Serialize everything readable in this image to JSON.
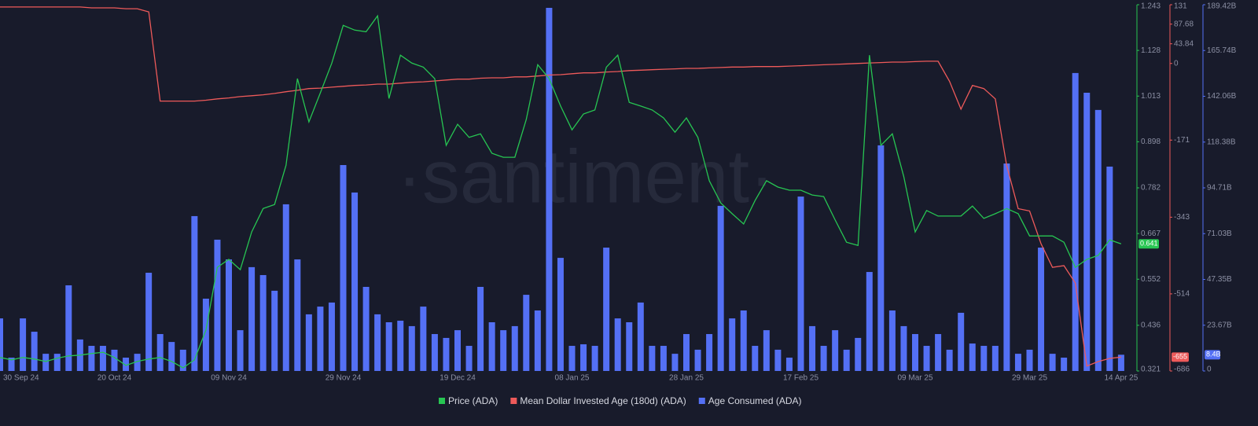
{
  "chart_data": {
    "type": "combo",
    "watermark": "·santiment·",
    "categories": [
      "30 Sep 24",
      null,
      null,
      null,
      null,
      null,
      null,
      null,
      null,
      null,
      "20 Oct 24",
      null,
      null,
      null,
      null,
      null,
      null,
      null,
      null,
      null,
      "09 Nov 24",
      null,
      null,
      null,
      null,
      null,
      null,
      null,
      null,
      null,
      "29 Nov 24",
      null,
      null,
      null,
      null,
      null,
      null,
      null,
      null,
      null,
      "19 Dec 24",
      null,
      null,
      null,
      null,
      null,
      null,
      null,
      null,
      null,
      "08 Jan 25",
      null,
      null,
      null,
      null,
      null,
      null,
      null,
      null,
      null,
      "28 Jan 25",
      null,
      null,
      null,
      null,
      null,
      null,
      null,
      null,
      null,
      "17 Feb 25",
      null,
      null,
      null,
      null,
      null,
      null,
      null,
      null,
      null,
      "09 Mar 25",
      null,
      null,
      null,
      null,
      null,
      null,
      null,
      null,
      null,
      "29 Mar 25",
      null,
      null,
      null,
      null,
      null,
      null,
      null,
      "14 Apr 25"
    ],
    "series": [
      {
        "name": "Price (ADA)",
        "type": "line",
        "axis": "y",
        "color": "#27c552",
        "values": [
          0.355,
          0.349,
          0.355,
          0.351,
          0.345,
          0.353,
          0.359,
          0.361,
          0.365,
          0.368,
          0.355,
          0.335,
          0.345,
          0.351,
          0.355,
          0.345,
          0.329,
          0.349,
          0.424,
          0.582,
          0.602,
          0.576,
          0.671,
          0.73,
          0.74,
          0.839,
          1.057,
          0.948,
          1.021,
          1.096,
          1.191,
          1.179,
          1.175,
          1.215,
          1.007,
          1.116,
          1.096,
          1.086,
          1.057,
          0.889,
          0.942,
          0.909,
          0.918,
          0.869,
          0.859,
          0.859,
          0.954,
          1.092,
          1.057,
          0.988,
          0.928,
          0.968,
          0.978,
          1.086,
          1.116,
          0.997,
          0.988,
          0.978,
          0.958,
          0.922,
          0.958,
          0.909,
          0.8,
          0.744,
          0.717,
          0.691,
          0.75,
          0.8,
          0.784,
          0.776,
          0.776,
          0.764,
          0.76,
          0.701,
          0.645,
          0.637,
          1.116,
          0.889,
          0.918,
          0.81,
          0.671,
          0.725,
          0.711,
          0.711,
          0.711,
          0.736,
          0.705,
          0.717,
          0.73,
          0.717,
          0.661,
          0.661,
          0.661,
          0.645,
          0.582,
          0.602,
          0.612,
          0.651,
          0.641
        ]
      },
      {
        "name": "Mean Dollar Invested Age (180d) (ADA)",
        "type": "line",
        "axis": "y2",
        "color": "#ee5a5a",
        "values": [
          126,
          126,
          126,
          126,
          126,
          126,
          126,
          126,
          124,
          124,
          124,
          122,
          122,
          115,
          -84,
          -84,
          -84,
          -84,
          -82,
          -79,
          -77,
          -74,
          -72,
          -70,
          -67,
          -63,
          -60,
          -56,
          -55,
          -53,
          -51,
          -49,
          -48,
          -46,
          -46,
          -44,
          -42,
          -41,
          -39,
          -37,
          -35,
          -35,
          -33,
          -32,
          -32,
          -30,
          -30,
          -28,
          -26,
          -25,
          -23,
          -21,
          -21,
          -19,
          -18,
          -16,
          -15,
          -14,
          -13,
          -12,
          -11,
          -11,
          -10,
          -9,
          -8,
          -8,
          -7,
          -7,
          -7,
          -6,
          -5,
          -4,
          -3,
          -2,
          -1,
          0,
          1,
          2,
          3,
          3,
          4,
          5,
          5,
          -40,
          -102,
          -49,
          -56,
          -79,
          -228,
          -324,
          -329,
          -402,
          -455,
          -451,
          -490,
          -675,
          -665,
          -658,
          -655
        ]
      },
      {
        "name": "Age Consumed (ADA)",
        "type": "bar",
        "axis": "y3",
        "color": "#5470f5",
        "last_value_label": "8.4B",
        "values": [
          27.2,
          6.9,
          27.2,
          20.3,
          8.9,
          8.9,
          44.3,
          16.3,
          13.0,
          13.0,
          11.0,
          6.9,
          8.9,
          50.8,
          19.1,
          15.0,
          11.0,
          80.1,
          37.4,
          67.9,
          57.7,
          21.1,
          53.7,
          49.6,
          41.5,
          86.2,
          57.7,
          29.3,
          33.3,
          35.4,
          106.5,
          92.3,
          43.5,
          29.3,
          25.2,
          26.0,
          23.2,
          33.3,
          19.1,
          17.1,
          21.1,
          13.0,
          43.5,
          25.2,
          21.1,
          23.2,
          39.4,
          31.3,
          187.8,
          58.5,
          13.0,
          13.8,
          13.0,
          63.8,
          27.2,
          25.2,
          35.4,
          13.0,
          13.0,
          8.9,
          19.1,
          11.0,
          19.1,
          85.4,
          27.2,
          31.3,
          13.0,
          21.1,
          11.0,
          6.9,
          90.2,
          23.2,
          13.0,
          21.1,
          11.0,
          17.1,
          51.2,
          116.7,
          31.3,
          23.2,
          19.1,
          13.0,
          19.1,
          11.0,
          30.1,
          14.2,
          13.0,
          13.0,
          107.3,
          8.9,
          11.0,
          63.8,
          8.9,
          6.9,
          154.1,
          143.9,
          135.0,
          105.7,
          8.4
        ]
      }
    ],
    "ylim": [
      0.321,
      1.243
    ],
    "yticks": [
      0.321,
      0.436,
      0.552,
      0.667,
      0.782,
      0.898,
      1.013,
      1.128,
      1.243
    ],
    "y2lim": [
      -686,
      131
    ],
    "y2ticks": [
      -686,
      -514,
      -343,
      -171,
      0,
      43.84,
      87.68,
      131
    ],
    "y3lim": [
      0,
      189.42
    ],
    "y3ticks": [
      0,
      {
        "value": 23.67,
        "label": "23.67B"
      },
      {
        "value": 47.35,
        "label": "47.35B"
      },
      {
        "value": 71.03,
        "label": "71.03B"
      },
      {
        "value": 94.71,
        "label": "94.71B"
      },
      {
        "value": 118.38,
        "label": "118.38B"
      },
      {
        "value": 142.06,
        "label": "142.06B"
      },
      {
        "value": 165.74,
        "label": "165.74B"
      },
      {
        "value": 189.42,
        "label": "189.42B"
      }
    ],
    "legend": "bottom"
  }
}
